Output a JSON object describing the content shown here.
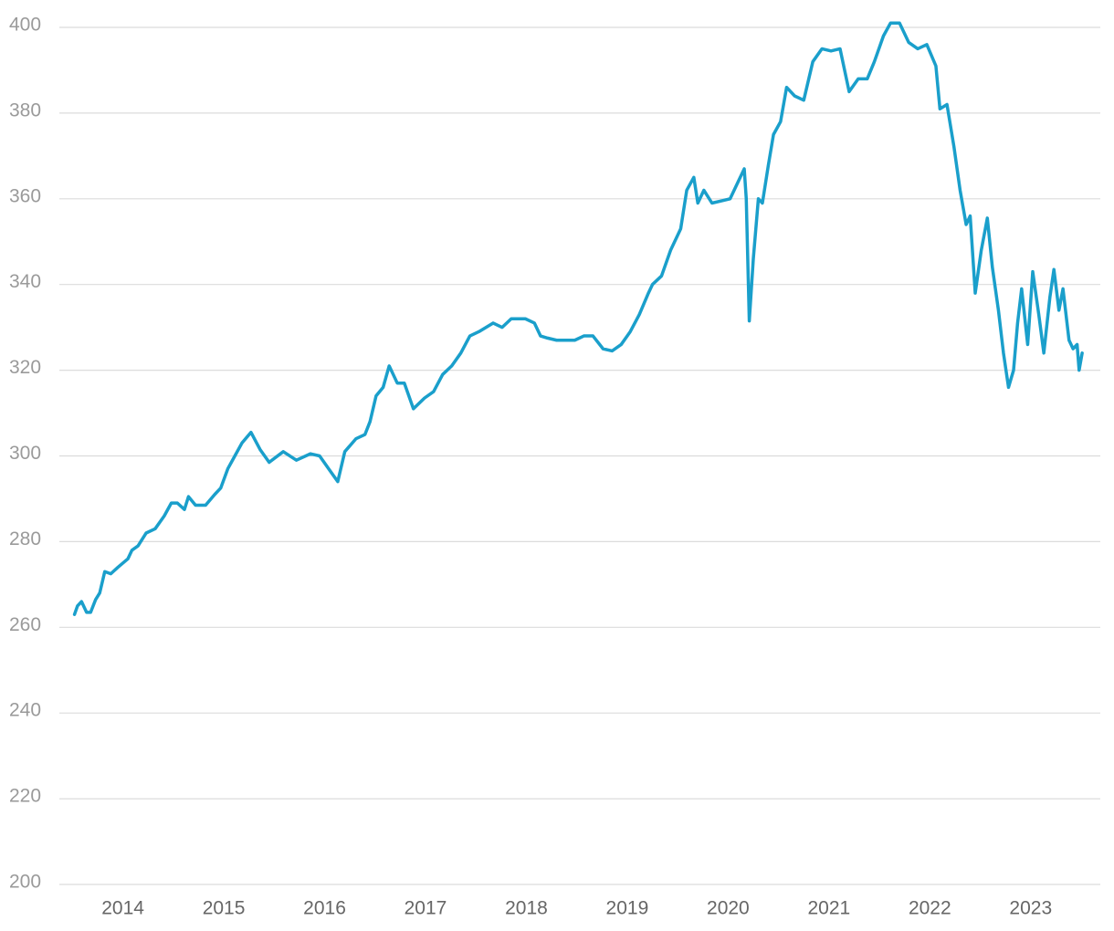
{
  "chart_data": {
    "type": "line",
    "color": "#1a9fcb",
    "x": [
      2013.52,
      2013.55,
      2013.59,
      2013.64,
      2013.68,
      2013.73,
      2013.77,
      2013.82,
      2013.88,
      2013.95,
      2014.05,
      2014.09,
      2014.15,
      2014.23,
      2014.32,
      2014.41,
      2014.48,
      2014.54,
      2014.61,
      2014.65,
      2014.72,
      2014.82,
      2014.91,
      2014.97,
      2015.04,
      2015.11,
      2015.18,
      2015.27,
      2015.36,
      2015.45,
      2015.59,
      2015.72,
      2015.86,
      2015.95,
      2016.04,
      2016.13,
      2016.2,
      2016.31,
      2016.4,
      2016.45,
      2016.51,
      2016.58,
      2016.64,
      2016.72,
      2016.79,
      2016.88,
      2016.99,
      2017.08,
      2017.17,
      2017.26,
      2017.35,
      2017.44,
      2017.53,
      2017.67,
      2017.76,
      2017.85,
      2017.99,
      2018.08,
      2018.14,
      2018.21,
      2018.3,
      2018.39,
      2018.48,
      2018.57,
      2018.66,
      2018.76,
      2018.85,
      2018.94,
      2019.03,
      2019.12,
      2019.21,
      2019.25,
      2019.34,
      2019.43,
      2019.53,
      2019.59,
      2019.66,
      2019.7,
      2019.76,
      2019.84,
      2019.93,
      2020.02,
      2020.1,
      2020.16,
      2020.18,
      2020.21,
      2020.25,
      2020.3,
      2020.34,
      2020.4,
      2020.45,
      2020.52,
      2020.58,
      2020.66,
      2020.75,
      2020.84,
      2020.93,
      2021.02,
      2021.11,
      2021.2,
      2021.29,
      2021.38,
      2021.45,
      2021.54,
      2021.61,
      2021.7,
      2021.79,
      2021.88,
      2021.97,
      2022.06,
      2022.1,
      2022.17,
      2022.24,
      2022.3,
      2022.36,
      2022.4,
      2022.45,
      2022.51,
      2022.57,
      2022.62,
      2022.68,
      2022.73,
      2022.78,
      2022.83,
      2022.87,
      2022.91,
      2022.97,
      2023.02,
      2023.08,
      2023.13,
      2023.19,
      2023.23,
      2023.28,
      2023.32,
      2023.38,
      2023.42,
      2023.46,
      2023.48,
      2023.51
    ],
    "values": [
      263,
      265,
      266,
      263.5,
      263.5,
      266.5,
      268,
      273,
      272.5,
      274,
      276,
      278,
      279,
      282,
      283,
      286,
      289,
      289,
      287.5,
      290.5,
      288.5,
      288.5,
      291,
      292.5,
      297,
      300,
      303,
      305.5,
      301.5,
      298.5,
      301,
      299,
      300.5,
      300,
      297,
      294,
      301,
      304,
      305,
      308,
      314,
      316,
      321,
      317,
      317,
      311,
      313.5,
      315,
      319,
      321,
      324,
      328,
      329,
      331,
      330,
      332,
      332,
      331,
      328,
      327.5,
      327,
      327,
      327,
      328,
      328,
      325,
      324.5,
      326,
      329,
      333,
      338,
      340,
      342,
      348,
      353,
      362,
      365,
      359,
      362,
      359,
      359.5,
      360,
      364,
      367,
      360,
      331.5,
      346,
      360,
      359,
      368,
      375,
      378,
      386,
      384,
      383,
      392,
      395,
      394.5,
      395,
      385,
      388,
      388,
      392,
      398,
      401,
      401,
      396.5,
      395,
      396,
      391,
      381,
      382,
      372,
      362,
      354,
      356,
      338,
      348,
      355.5,
      344,
      334,
      324,
      316,
      320,
      331,
      339,
      326,
      343,
      333,
      324,
      337,
      343.5,
      334,
      339,
      327,
      325,
      326,
      320,
      324
    ],
    "xlim": [
      2013.37,
      2023.69
    ],
    "xticks": [
      2014,
      2015,
      2016,
      2017,
      2018,
      2019,
      2020,
      2021,
      2022,
      2023
    ],
    "ylim": [
      200,
      400
    ],
    "yticks": [
      200,
      220,
      240,
      260,
      280,
      300,
      320,
      340,
      360,
      380,
      400
    ],
    "grid": true
  }
}
